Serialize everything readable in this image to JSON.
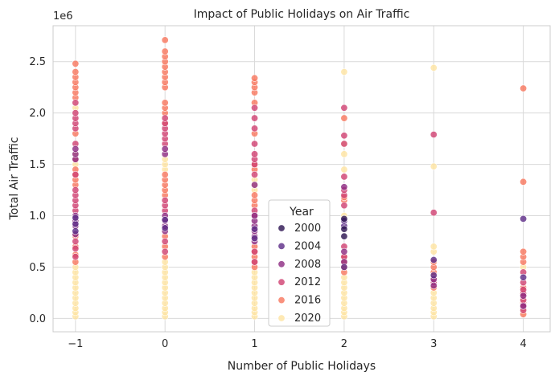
{
  "chart_data": {
    "type": "scatter",
    "title": "Impact of Public Holidays on Air Traffic",
    "xlabel": "Number of Public Holidays",
    "ylabel": "Total Air Traffic",
    "y_offset_label": "1e6",
    "xlim": [
      -1.25,
      4.3
    ],
    "ylim": [
      -130000,
      2850000
    ],
    "x_ticks": [
      -1,
      0,
      1,
      2,
      3,
      4
    ],
    "x_tick_labels": [
      "−1",
      "0",
      "1",
      "2",
      "3",
      "4"
    ],
    "y_ticks": [
      0,
      500000,
      1000000,
      1500000,
      2000000,
      2500000
    ],
    "y_tick_labels": [
      "0.0",
      "0.5",
      "1.0",
      "1.5",
      "2.0",
      "2.5"
    ],
    "grid": true,
    "legend": {
      "title": "Year",
      "position": "lower-center",
      "entries": [
        {
          "label": "2000",
          "color": "#2b1150"
        },
        {
          "label": "2004",
          "color": "#5b2a86"
        },
        {
          "label": "2008",
          "color": "#8c2981"
        },
        {
          "label": "2012",
          "color": "#cf4070"
        },
        {
          "label": "2016",
          "color": "#f8765c"
        },
        {
          "label": "2020",
          "color": "#fee3a1"
        }
      ]
    },
    "series": [
      {
        "x": -1,
        "year": 2020,
        "values": [
          20000,
          60000,
          100000,
          150000,
          200000,
          250000,
          300000,
          350000,
          400000,
          450000,
          500000,
          1500000,
          1600000,
          2050000
        ]
      },
      {
        "x": -1,
        "year": 2016,
        "values": [
          550000,
          620000,
          700000,
          800000,
          1300000,
          1350000,
          1400000,
          1450000,
          1550000,
          1800000,
          2150000,
          2200000,
          2250000,
          2300000,
          2350000,
          2400000,
          2480000
        ]
      },
      {
        "x": -1,
        "year": 2012,
        "values": [
          600000,
          680000,
          750000,
          1050000,
          1100000,
          1150000,
          1200000,
          1250000,
          1400000,
          1700000,
          1850000,
          1900000,
          1950000,
          2000000,
          2100000
        ]
      },
      {
        "x": -1,
        "year": 2008,
        "values": [
          820000,
          900000,
          950000,
          1000000,
          1550000,
          1600000,
          1650000
        ]
      },
      {
        "x": -1,
        "year": 2004,
        "values": [
          850000,
          920000,
          980000
        ]
      },
      {
        "x": 0,
        "year": 2020,
        "values": [
          20000,
          60000,
          100000,
          150000,
          200000,
          250000,
          300000,
          350000,
          400000,
          450000,
          500000,
          550000,
          1450000,
          1500000,
          1550000
        ]
      },
      {
        "x": 0,
        "year": 2016,
        "values": [
          600000,
          700000,
          800000,
          1200000,
          1250000,
          1300000,
          1350000,
          1400000,
          1900000,
          2000000,
          2050000,
          2100000,
          2250000,
          2300000,
          2350000,
          2400000,
          2450000,
          2500000,
          2550000,
          2600000,
          2710000
        ]
      },
      {
        "x": 0,
        "year": 2012,
        "values": [
          650000,
          750000,
          1050000,
          1100000,
          1150000,
          1700000,
          1750000,
          1800000,
          1850000,
          1900000,
          1950000
        ]
      },
      {
        "x": 0,
        "year": 2008,
        "values": [
          850000,
          900000,
          950000,
          1000000,
          1600000,
          1650000
        ]
      },
      {
        "x": 0,
        "year": 2004,
        "values": [
          880000,
          960000
        ]
      },
      {
        "x": 1,
        "year": 2020,
        "values": [
          20000,
          60000,
          100000,
          150000,
          200000,
          250000,
          300000,
          350000,
          400000,
          450000,
          1250000,
          1300000,
          1350000
        ]
      },
      {
        "x": 1,
        "year": 2016,
        "values": [
          500000,
          550000,
          600000,
          650000,
          700000,
          1100000,
          1150000,
          1200000,
          1450000,
          1500000,
          1800000,
          2100000,
          2200000,
          2250000,
          2300000,
          2340000
        ]
      },
      {
        "x": 1,
        "year": 2012,
        "values": [
          550000,
          650000,
          1000000,
          1050000,
          1400000,
          1500000,
          1550000,
          1600000,
          1700000,
          1850000,
          1950000,
          2050000
        ]
      },
      {
        "x": 1,
        "year": 2008,
        "values": [
          750000,
          800000,
          850000,
          900000,
          950000,
          1000000,
          1300000
        ]
      },
      {
        "x": 1,
        "year": 2004,
        "values": [
          780000,
          870000
        ]
      },
      {
        "x": 2,
        "year": 2020,
        "values": [
          20000,
          60000,
          100000,
          150000,
          200000,
          250000,
          300000,
          350000,
          400000,
          1000000,
          1450000,
          1600000,
          1700000,
          2400000
        ]
      },
      {
        "x": 2,
        "year": 2016,
        "values": [
          450000,
          500000,
          550000,
          600000,
          1150000,
          1180000,
          1950000
        ]
      },
      {
        "x": 2,
        "year": 2012,
        "values": [
          600000,
          700000,
          1100000,
          1200000,
          1250000,
          1380000,
          1700000,
          1780000,
          2050000
        ]
      },
      {
        "x": 2,
        "year": 2008,
        "values": [
          550000,
          650000,
          1280000
        ]
      },
      {
        "x": 2,
        "year": 2004,
        "values": [
          500000,
          900000,
          950000
        ]
      },
      {
        "x": 2,
        "year": 2000,
        "values": [
          800000,
          870000,
          970000
        ]
      },
      {
        "x": 3,
        "year": 2020,
        "values": [
          20000,
          60000,
          100000,
          150000,
          200000,
          250000,
          650000,
          700000,
          1480000,
          2440000
        ]
      },
      {
        "x": 3,
        "year": 2016,
        "values": [
          300000,
          400000,
          450000,
          500000,
          550000
        ]
      },
      {
        "x": 3,
        "year": 2012,
        "values": [
          350000,
          1030000,
          1790000
        ]
      },
      {
        "x": 3,
        "year": 2008,
        "values": [
          320000,
          380000
        ]
      },
      {
        "x": 3,
        "year": 2004,
        "values": [
          420000,
          570000
        ]
      },
      {
        "x": 4,
        "year": 2020,
        "values": [
          60000,
          200000,
          500000
        ]
      },
      {
        "x": 4,
        "year": 2016,
        "values": [
          40000,
          100000,
          150000,
          250000,
          300000,
          550000,
          600000,
          650000,
          1330000,
          2240000
        ]
      },
      {
        "x": 4,
        "year": 2012,
        "values": [
          80000,
          130000,
          180000,
          240000,
          280000,
          350000,
          450000
        ]
      },
      {
        "x": 4,
        "year": 2008,
        "values": [
          120000,
          220000
        ]
      },
      {
        "x": 4,
        "year": 2004,
        "values": [
          400000,
          970000
        ]
      }
    ]
  }
}
